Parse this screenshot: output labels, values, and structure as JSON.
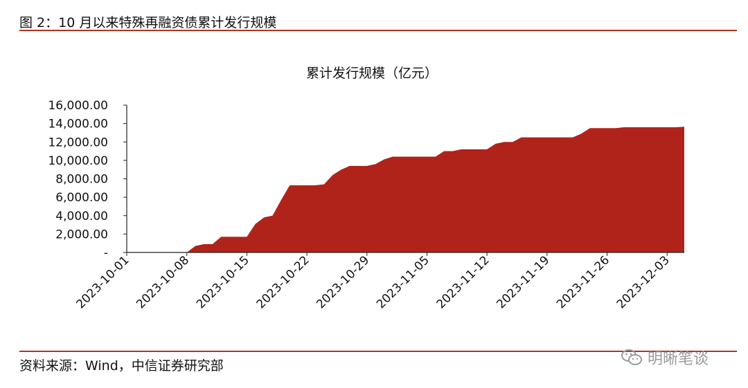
{
  "figure_title": "图 2：10 月以来特殊再融资债累计发行规模",
  "source_note": "资料来源：Wind，中信证券研究部",
  "watermark_text": "明晰笔谈",
  "colors": {
    "accent": "#b0231a",
    "rule": "#b0331f"
  },
  "chart_data": {
    "type": "area",
    "title": "累计发行规模（亿元）",
    "xlabel": "",
    "ylabel": "",
    "ylim": [
      0,
      16000
    ],
    "yticks": [
      0,
      2000,
      4000,
      6000,
      8000,
      10000,
      12000,
      14000,
      16000
    ],
    "ytick_labels": [
      "-",
      "2,000.00",
      "4,000.00",
      "6,000.00",
      "8,000.00",
      "10,000.00",
      "12,000.00",
      "14,000.00",
      "16,000.00"
    ],
    "xticks": [
      "2023-10-01",
      "2023-10-08",
      "2023-10-15",
      "2023-10-22",
      "2023-10-29",
      "2023-11-05",
      "2023-11-12",
      "2023-11-19",
      "2023-11-26",
      "2023-12-03"
    ],
    "grid": false,
    "legend": "none",
    "x": [
      "2023-10-01",
      "2023-10-08",
      "2023-10-09",
      "2023-10-10",
      "2023-10-11",
      "2023-10-12",
      "2023-10-13",
      "2023-10-14",
      "2023-10-15",
      "2023-10-16",
      "2023-10-17",
      "2023-10-18",
      "2023-10-19",
      "2023-10-20",
      "2023-10-21",
      "2023-10-22",
      "2023-10-23",
      "2023-10-24",
      "2023-10-25",
      "2023-10-26",
      "2023-10-27",
      "2023-10-28",
      "2023-10-29",
      "2023-10-30",
      "2023-10-31",
      "2023-11-01",
      "2023-11-02",
      "2023-11-03",
      "2023-11-04",
      "2023-11-05",
      "2023-11-06",
      "2023-11-07",
      "2023-11-08",
      "2023-11-09",
      "2023-11-10",
      "2023-11-11",
      "2023-11-12",
      "2023-11-13",
      "2023-11-14",
      "2023-11-15",
      "2023-11-16",
      "2023-11-17",
      "2023-11-18",
      "2023-11-19",
      "2023-11-20",
      "2023-11-21",
      "2023-11-22",
      "2023-11-23",
      "2023-11-24",
      "2023-11-25",
      "2023-11-26",
      "2023-11-27",
      "2023-11-28",
      "2023-11-29",
      "2023-11-30",
      "2023-12-01",
      "2023-12-02",
      "2023-12-03",
      "2023-12-04",
      "2023-12-05"
    ],
    "values": [
      0,
      0,
      700,
      900,
      900,
      1700,
      1700,
      1700,
      1700,
      3100,
      3800,
      4000,
      5700,
      7300,
      7300,
      7300,
      7300,
      7400,
      8400,
      9000,
      9400,
      9400,
      9400,
      9600,
      10100,
      10400,
      10400,
      10400,
      10400,
      10400,
      10400,
      11000,
      11000,
      11200,
      11200,
      11200,
      11200,
      11800,
      12000,
      12000,
      12500,
      12500,
      12500,
      12500,
      12500,
      12500,
      12500,
      12900,
      13500,
      13500,
      13500,
      13500,
      13600,
      13600,
      13600,
      13600,
      13600,
      13600,
      13600,
      13650
    ]
  }
}
